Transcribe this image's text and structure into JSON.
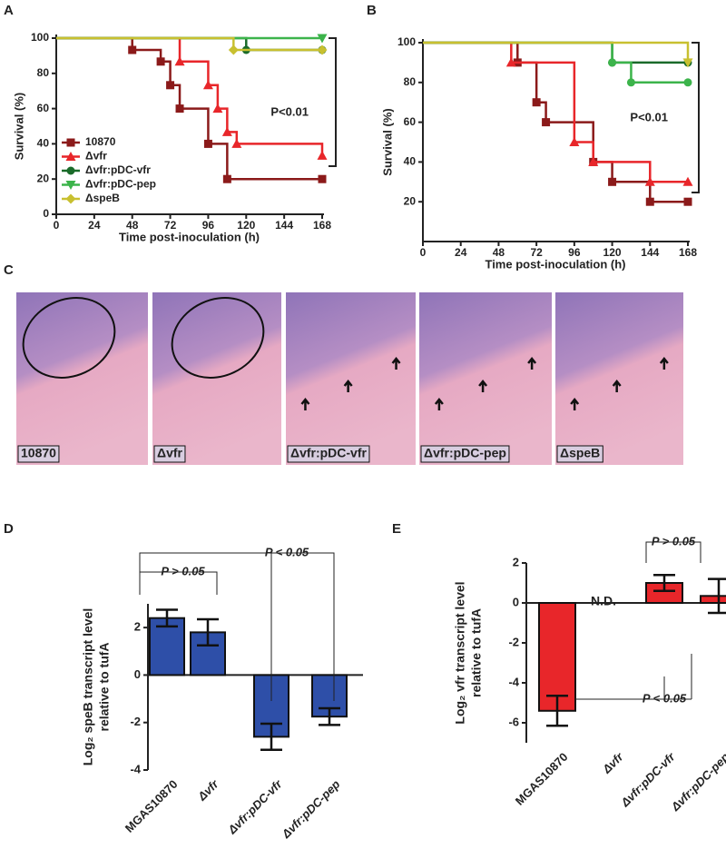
{
  "chart_data": [
    {
      "type": "line",
      "step": "post",
      "panel": "A",
      "x_label": "Time post-inoculation (h)",
      "y_label": "Survival (%)",
      "xlim": [
        0,
        168
      ],
      "xticks": [
        0,
        24,
        48,
        72,
        96,
        120,
        144,
        168
      ],
      "ylim": [
        0,
        100
      ],
      "yticks": [
        0,
        20,
        40,
        60,
        80,
        100
      ],
      "legend": "bottom-left",
      "annotation": "P<0.01",
      "series": [
        {
          "name": "10870",
          "color": "#8b1a1a",
          "marker": "square",
          "x": [
            0,
            48,
            66,
            72,
            78,
            96,
            108,
            168
          ],
          "values": [
            100,
            93.3,
            86.7,
            73.3,
            60,
            40,
            20,
            20
          ]
        },
        {
          "name": "Δvfr",
          "color": "#e8262a",
          "marker": "triangle-up",
          "x": [
            0,
            78,
            96,
            102,
            108,
            114,
            168
          ],
          "values": [
            100,
            86.7,
            73.3,
            60,
            46.7,
            40,
            33.3
          ]
        },
        {
          "name": "Δvfr:pDC-vfr",
          "color": "#1a6b2a",
          "marker": "circle",
          "x": [
            0,
            120,
            168
          ],
          "values": [
            100,
            93.3,
            93.3
          ]
        },
        {
          "name": "Δvfr:pDC-pep",
          "color": "#3cb44b",
          "marker": "triangle-down",
          "x": [
            0,
            168
          ],
          "values": [
            100,
            100
          ]
        },
        {
          "name": "ΔspeB",
          "color": "#c8c030",
          "marker": "diamond",
          "x": [
            0,
            112,
            168
          ],
          "values": [
            100,
            93.3,
            93.3
          ]
        }
      ]
    },
    {
      "type": "line",
      "step": "post",
      "panel": "B",
      "x_label": "Time post-inoculation (h)",
      "y_label": "Survival (%)",
      "xlim": [
        0,
        168
      ],
      "xticks": [
        0,
        24,
        48,
        72,
        96,
        120,
        144,
        168
      ],
      "ylim": [
        0,
        100
      ],
      "yticks": [
        20,
        40,
        60,
        80,
        100
      ],
      "annotation": "P<0.01",
      "series": [
        {
          "color": "#8b1a1a",
          "marker": "square",
          "x": [
            0,
            60,
            72,
            78,
            108,
            120,
            144,
            168
          ],
          "values": [
            100,
            90,
            70,
            60,
            40,
            30,
            20,
            20
          ]
        },
        {
          "color": "#e8262a",
          "marker": "triangle-up",
          "x": [
            0,
            56,
            96,
            108,
            144,
            168
          ],
          "values": [
            100,
            90,
            50,
            40,
            30,
            30
          ]
        },
        {
          "color": "#1a6b2a",
          "marker": "circle",
          "x": [
            0,
            120,
            168
          ],
          "values": [
            100,
            90,
            90
          ]
        },
        {
          "color": "#3cb44b",
          "marker": "circle",
          "x": [
            0,
            120,
            132,
            168
          ],
          "values": [
            100,
            90,
            80,
            80
          ]
        },
        {
          "color": "#c8c030",
          "marker": "triangle-down",
          "x": [
            0,
            168
          ],
          "values": [
            100,
            90
          ]
        }
      ]
    },
    {
      "type": "bar",
      "panel": "D",
      "y_label": [
        "Log₂ speB transcript level",
        "relative to tufA"
      ],
      "categories": [
        "MGAS10870",
        "Δvfr",
        "Δvfr:pDC-vfr",
        "Δvfr:pDC-pep"
      ],
      "values": [
        2.4,
        1.8,
        -2.6,
        -1.75
      ],
      "errors": [
        0.35,
        0.55,
        0.55,
        0.35
      ],
      "color": "#2e4fa8",
      "ylim": [
        -4,
        3
      ],
      "yticks": [
        -4,
        -2,
        0,
        2
      ],
      "annotations": [
        "P > 0.05",
        "P < 0.05"
      ]
    },
    {
      "type": "bar",
      "panel": "E",
      "y_label": [
        "Log₂ vfr transcript level",
        "relative to tufA"
      ],
      "categories": [
        "MGAS10870",
        "Δvfr",
        "Δvfr:pDC-vfr",
        "Δvfr:pDC-pep"
      ],
      "values": [
        -5.4,
        null,
        1.0,
        0.35
      ],
      "errors": [
        0.75,
        null,
        0.4,
        0.85
      ],
      "color": "#e8262a",
      "ylim": [
        -7,
        2
      ],
      "yticks": [
        -6,
        -4,
        -2,
        0,
        2
      ],
      "annotations": [
        "N.D.",
        "P > 0.05",
        "P < 0.05"
      ]
    }
  ],
  "histology": {
    "panel": "C",
    "labels": [
      "10870",
      "Δvfr",
      "Δvfr:pDC-vfr",
      "Δvfr:pDC-pep",
      "ΔspeB"
    ]
  }
}
